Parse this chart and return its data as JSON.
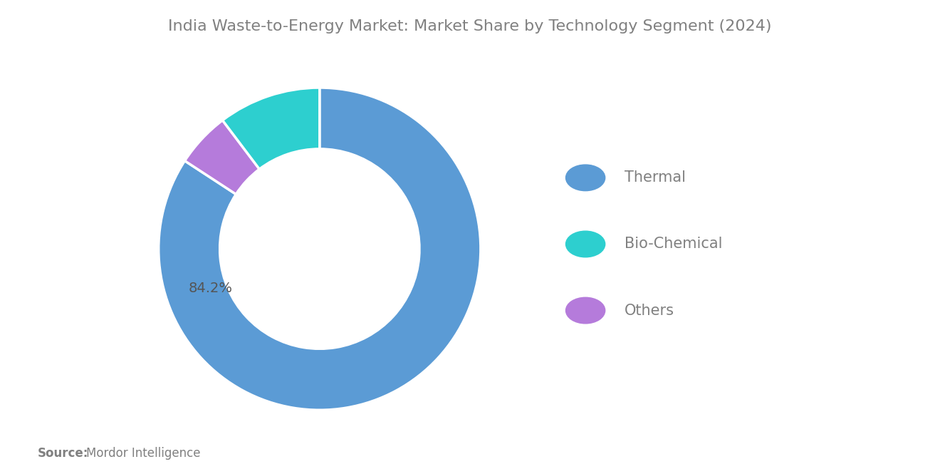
{
  "title": "India Waste-to-Energy Market: Market Share by Technology Segment (2024)",
  "segments": [
    "Thermal",
    "Others",
    "Bio-Chemical"
  ],
  "values": [
    84.2,
    5.5,
    10.3
  ],
  "colors": [
    "#5B9BD5",
    "#B57BDB",
    "#2DCFCF"
  ],
  "legend_segments": [
    "Thermal",
    "Bio-Chemical",
    "Others"
  ],
  "legend_colors": [
    "#5B9BD5",
    "#2DCFCF",
    "#B57BDB"
  ],
  "label_text": "84.2%",
  "label_color": "#555555",
  "source_bold": "Source:",
  "source_text": "Mordor Intelligence",
  "title_color": "#808080",
  "legend_text_color": "#808080",
  "source_color": "#808080",
  "background_color": "#ffffff",
  "title_fontsize": 16,
  "legend_fontsize": 15,
  "source_fontsize": 12,
  "label_fontsize": 14
}
